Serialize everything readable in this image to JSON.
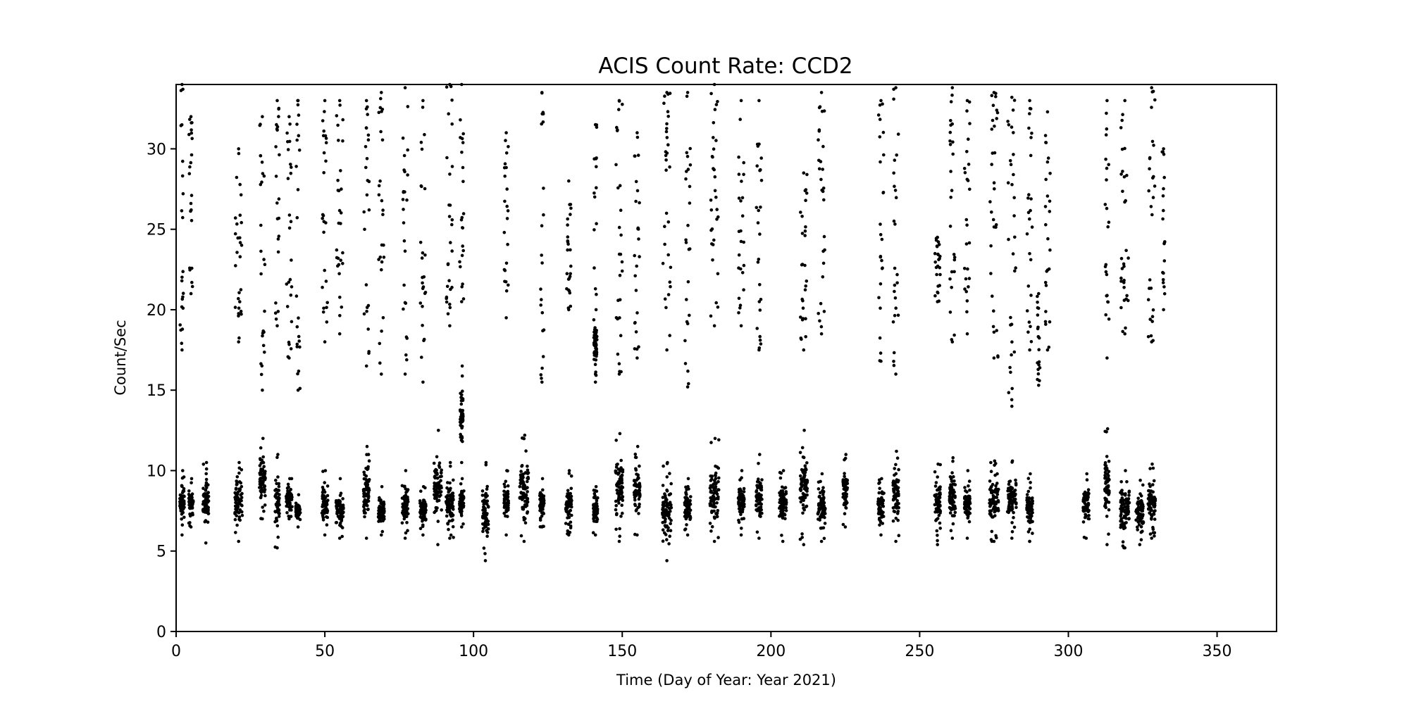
{
  "chart_data": {
    "type": "scatter",
    "title": "ACIS Count Rate: CCD2",
    "xlabel": "Time (Day of Year: Year 2021)",
    "ylabel": "Count/Sec",
    "xlim": [
      0,
      370
    ],
    "ylim": [
      0,
      34
    ],
    "xticks": [
      0,
      50,
      100,
      150,
      200,
      250,
      300,
      350
    ],
    "yticks": [
      0,
      5,
      10,
      15,
      20,
      25,
      30
    ],
    "marker_color": "#000000",
    "grid": false,
    "legend": "none",
    "note": "",
    "clusters": [
      {
        "x": 2,
        "width": 1.5,
        "low": [
          6,
          10
        ],
        "high": [
          17.5,
          34
        ]
      },
      {
        "x": 5,
        "width": 1.5,
        "low": [
          6.5,
          9.5
        ],
        "high": [
          21,
          32
        ]
      },
      {
        "x": 10,
        "width": 2,
        "low": [
          5.5,
          10.5
        ],
        "high": []
      },
      {
        "x": 21,
        "width": 2.5,
        "low": [
          5.6,
          10.5
        ],
        "high": [
          18,
          30
        ]
      },
      {
        "x": 29,
        "width": 2,
        "low": [
          7,
          12
        ],
        "high": [
          15,
          32
        ]
      },
      {
        "x": 34,
        "width": 1.5,
        "low": [
          5.2,
          11
        ],
        "high": [
          19,
          33
        ]
      },
      {
        "x": 38,
        "width": 2,
        "low": [
          7,
          9.5
        ],
        "high": [
          17,
          32
        ]
      },
      {
        "x": 41,
        "width": 1.5,
        "low": [
          6.5,
          8.5
        ],
        "high": [
          15,
          33
        ]
      },
      {
        "x": 50,
        "width": 2,
        "low": [
          6,
          10
        ],
        "high": [
          18,
          33
        ]
      },
      {
        "x": 55,
        "width": 2.5,
        "low": [
          5.8,
          9.5
        ],
        "high": [
          18.5,
          33
        ]
      },
      {
        "x": 64,
        "width": 2,
        "low": [
          5.8,
          11.5
        ],
        "high": [
          16.5,
          33
        ]
      },
      {
        "x": 69,
        "width": 2,
        "low": [
          6,
          9
        ],
        "high": [
          16,
          33.5
        ]
      },
      {
        "x": 77,
        "width": 2,
        "low": [
          5.8,
          10
        ],
        "high": [
          16,
          33.8
        ]
      },
      {
        "x": 83,
        "width": 2,
        "low": [
          6,
          9
        ],
        "high": [
          15.5,
          33
        ]
      },
      {
        "x": 88,
        "width": 2.5,
        "low": [
          5.4,
          12.5
        ],
        "high": []
      },
      {
        "x": 92,
        "width": 2.5,
        "low": [
          5.8,
          10.5
        ],
        "high": [
          19,
          34
        ]
      },
      {
        "x": 96,
        "width": 1.5,
        "low": [
          6.5,
          9.5
        ],
        "high": [
          20.5,
          34
        ]
      },
      {
        "x": 96,
        "width": 1,
        "low": [
          10.5,
          16.5
        ],
        "high": []
      },
      {
        "x": 104,
        "width": 2,
        "low": [
          4.4,
          10.5
        ],
        "high": []
      },
      {
        "x": 111,
        "width": 1.5,
        "low": [
          6,
          10
        ],
        "high": [
          19.5,
          31
        ]
      },
      {
        "x": 117,
        "width": 3,
        "low": [
          5.6,
          12.2
        ],
        "high": []
      },
      {
        "x": 123,
        "width": 1.5,
        "low": [
          6.5,
          9.5
        ],
        "high": [
          15.5,
          33.5
        ]
      },
      {
        "x": 132,
        "width": 2,
        "low": [
          6,
          10
        ],
        "high": [
          20,
          28
        ]
      },
      {
        "x": 141,
        "width": 1.5,
        "low": [
          6,
          9
        ],
        "high": [
          15.5,
          31.5
        ]
      },
      {
        "x": 141,
        "width": 1,
        "low": [
          16,
          20
        ],
        "high": []
      },
      {
        "x": 149,
        "width": 2.5,
        "low": [
          5.6,
          12.3
        ],
        "high": [
          16,
          33
        ]
      },
      {
        "x": 155,
        "width": 2,
        "low": [
          6,
          11.5
        ],
        "high": [
          17,
          31
        ]
      },
      {
        "x": 165,
        "width": 3,
        "low": [
          4.4,
          10.5
        ],
        "high": [
          17.5,
          33.5
        ]
      },
      {
        "x": 172,
        "width": 2,
        "low": [
          6,
          9.5
        ],
        "high": [
          15.2,
          33.5
        ]
      },
      {
        "x": 181,
        "width": 3,
        "low": [
          5.6,
          12
        ],
        "high": [
          19,
          34
        ]
      },
      {
        "x": 190,
        "width": 2,
        "low": [
          6,
          10
        ],
        "high": [
          19,
          33
        ]
      },
      {
        "x": 196,
        "width": 2,
        "low": [
          5.8,
          11
        ],
        "high": [
          17.5,
          33
        ]
      },
      {
        "x": 204,
        "width": 2.5,
        "low": [
          5.6,
          10
        ],
        "high": []
      },
      {
        "x": 211,
        "width": 2.5,
        "low": [
          5.4,
          12.5
        ],
        "high": [
          17.5,
          28.5
        ]
      },
      {
        "x": 217,
        "width": 2.5,
        "low": [
          5.6,
          9.8
        ],
        "high": [
          18.5,
          33.5
        ]
      },
      {
        "x": 225,
        "width": 1.5,
        "low": [
          6.5,
          11
        ],
        "high": []
      },
      {
        "x": 237,
        "width": 2,
        "low": [
          6,
          9.5
        ],
        "high": [
          16.8,
          33
        ]
      },
      {
        "x": 242,
        "width": 2,
        "low": [
          5.6,
          11.2
        ],
        "high": [
          16,
          33.8
        ]
      },
      {
        "x": 256,
        "width": 2,
        "low": [
          5.4,
          10.4
        ],
        "high": [
          20.5,
          24.5
        ]
      },
      {
        "x": 261,
        "width": 2,
        "low": [
          5.8,
          10.8
        ],
        "high": [
          18,
          33.8
        ]
      },
      {
        "x": 266,
        "width": 2,
        "low": [
          5.8,
          10
        ],
        "high": [
          18.5,
          33
        ]
      },
      {
        "x": 275,
        "width": 3,
        "low": [
          5.6,
          10.6
        ],
        "high": [
          17,
          33.5
        ]
      },
      {
        "x": 281,
        "width": 3,
        "low": [
          5.8,
          10.6
        ],
        "high": [
          14,
          33.2
        ]
      },
      {
        "x": 287,
        "width": 2,
        "low": [
          5.6,
          9.8
        ],
        "high": [
          17.5,
          33
        ]
      },
      {
        "x": 290,
        "width": 1,
        "low": [],
        "high": [
          15.3,
          21
        ]
      },
      {
        "x": 293,
        "width": 2,
        "low": [],
        "high": [
          17.5,
          32.3
        ]
      },
      {
        "x": 306,
        "width": 2,
        "low": [
          5.8,
          9.8
        ],
        "high": []
      },
      {
        "x": 313,
        "width": 1.5,
        "low": [
          5.4,
          12.6
        ],
        "high": [
          17,
          33
        ]
      },
      {
        "x": 319,
        "width": 3,
        "low": [
          5.2,
          10
        ],
        "high": [
          18.5,
          33
        ]
      },
      {
        "x": 324,
        "width": 2.5,
        "low": [
          5.4,
          9.4
        ],
        "high": []
      },
      {
        "x": 328,
        "width": 2.5,
        "low": [
          5.8,
          10.4
        ],
        "high": [
          18,
          33.8
        ]
      },
      {
        "x": 332,
        "width": 1,
        "low": [],
        "high": [
          20,
          30
        ]
      }
    ]
  }
}
